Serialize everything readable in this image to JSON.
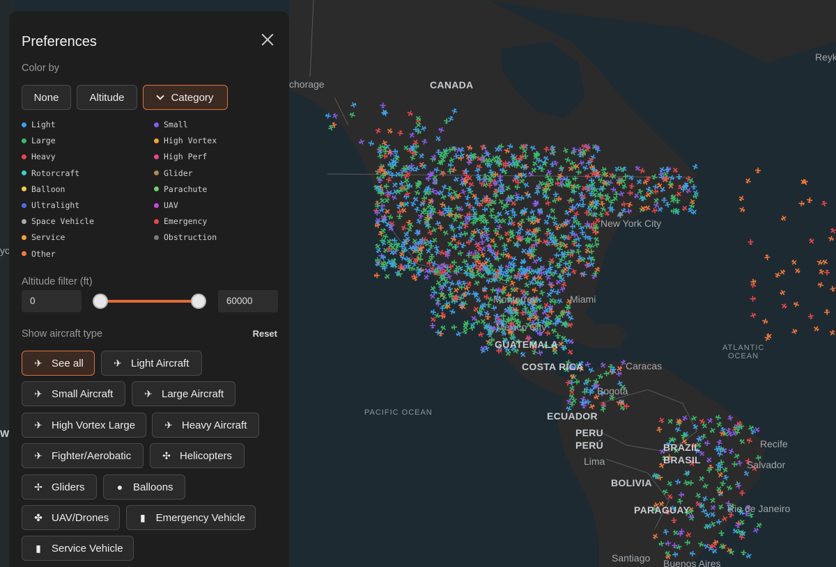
{
  "panel": {
    "title": "Preferences",
    "color_by": {
      "label": "Color by",
      "options": [
        "None",
        "Altitude",
        "Category"
      ],
      "selected": "Category"
    },
    "legend": [
      {
        "label": "Light",
        "color": "#3fa0e8"
      },
      {
        "label": "Large",
        "color": "#3db96b"
      },
      {
        "label": "Heavy",
        "color": "#e8484b"
      },
      {
        "label": "Rotorcraft",
        "color": "#3ecfcf"
      },
      {
        "label": "Balloon",
        "color": "#f2c94c"
      },
      {
        "label": "Ultralight",
        "color": "#4c6ce0"
      },
      {
        "label": "Space Vehicle",
        "color": "#a9a9a9"
      },
      {
        "label": "Service",
        "color": "#f2a33c"
      },
      {
        "label": "Other",
        "color": "#f07a3c"
      },
      {
        "label": "Small",
        "color": "#8a5ce6"
      },
      {
        "label": "High Vortex",
        "color": "#f2a33c"
      },
      {
        "label": "High Perf",
        "color": "#e8468e"
      },
      {
        "label": "Glider",
        "color": "#b08850"
      },
      {
        "label": "Parachute",
        "color": "#6ad46a"
      },
      {
        "label": "UAV",
        "color": "#c04ad8"
      },
      {
        "label": "Emergency",
        "color": "#e8484b"
      },
      {
        "label": "Obstruction",
        "color": "#7a7a7a"
      }
    ],
    "altitude_filter": {
      "label": "Altitude filter (ft)",
      "min_value": "0",
      "max_value": "60000"
    },
    "aircraft_type": {
      "label": "Show aircraft type",
      "reset_label": "Reset",
      "buttons": [
        {
          "label": "See all",
          "icon": "plane-icon"
        },
        {
          "label": "Light Aircraft",
          "icon": "light-plane-icon"
        },
        {
          "label": "Small Aircraft",
          "icon": "plane-icon"
        },
        {
          "label": "Large Aircraft",
          "icon": "plane-icon"
        },
        {
          "label": "High Vortex Large",
          "icon": "plane-icon"
        },
        {
          "label": "Heavy Aircraft",
          "icon": "plane-icon"
        },
        {
          "label": "Fighter/Aerobatic",
          "icon": "fighter-icon"
        },
        {
          "label": "Helicopters",
          "icon": "helicopter-icon"
        },
        {
          "label": "Gliders",
          "icon": "glider-icon"
        },
        {
          "label": "Balloons",
          "icon": "balloon-icon"
        },
        {
          "label": "UAV/Drones",
          "icon": "drone-icon"
        },
        {
          "label": "Emergency Vehicle",
          "icon": "emergency-vehicle-icon"
        },
        {
          "label": "Service Vehicle",
          "icon": "service-vehicle-icon"
        }
      ],
      "selected": "See all"
    }
  },
  "map": {
    "labels": {
      "canada": "CANADA",
      "anchorage": "chorage",
      "new_york": "New York City",
      "monterrey": "Monterrey",
      "miami": "Miami",
      "mexico": "Mexico City",
      "guatemala": "GUATEMALA",
      "costa_rica": "COSTA RICA",
      "caracas": "Caracas",
      "bogota": "Bogotá",
      "ecuador": "ECUADOR",
      "peru": "PERU",
      "peru2": "PERÚ",
      "lima": "Lima",
      "brazil": "BRAZIL",
      "brasil": "BRASIL",
      "recife": "Recife",
      "salvador": "Salvador",
      "bolivia": "BOLIVIA",
      "paraguay": "PARAGUAY",
      "rio": "Rio de Janeiro",
      "santiago": "Santiago",
      "buenos_aires": "Buenos Aires",
      "atlantic": "ATLANTIC OCEAN",
      "pacific": "PACIFIC OCEAN",
      "reyk": "Reyk",
      "yo": "yo",
      "w": "W"
    }
  }
}
